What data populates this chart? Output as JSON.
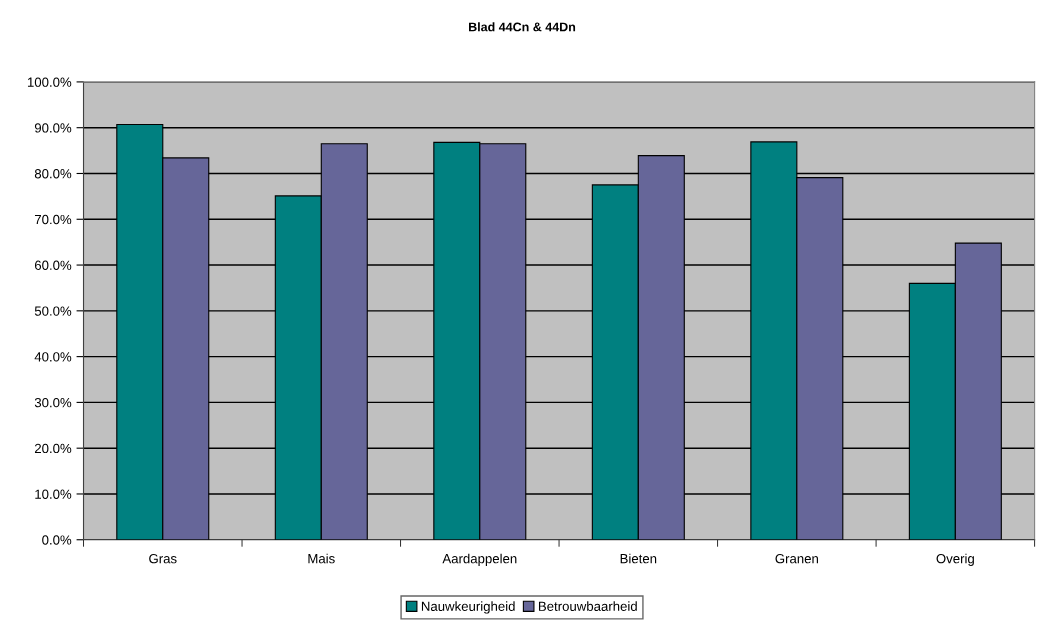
{
  "chart_data": {
    "type": "bar",
    "title": "Blad 44Cn & 44Dn",
    "categories": [
      "Gras",
      "Mais",
      "Aardappelen",
      "Bieten",
      "Granen",
      "Overig"
    ],
    "series": [
      {
        "name": "Nauwkeurigheid",
        "color": "#008080",
        "values": [
          90.7,
          75.1,
          86.8,
          77.5,
          86.9,
          56.0
        ]
      },
      {
        "name": "Betrouwbaarheid",
        "color": "#666699",
        "values": [
          83.4,
          86.5,
          86.5,
          83.9,
          79.1,
          64.8
        ]
      }
    ],
    "ylim": [
      0,
      100
    ],
    "yticks": [
      {
        "value": 0,
        "label": "0.0%"
      },
      {
        "value": 10,
        "label": "10.0%"
      },
      {
        "value": 20,
        "label": "20.0%"
      },
      {
        "value": 30,
        "label": "30.0%"
      },
      {
        "value": 40,
        "label": "40.0%"
      },
      {
        "value": 50,
        "label": "50.0%"
      },
      {
        "value": 60,
        "label": "60.0%"
      },
      {
        "value": 70,
        "label": "70.0%"
      },
      {
        "value": 80,
        "label": "80.0%"
      },
      {
        "value": 90,
        "label": "90.0%"
      },
      {
        "value": 100,
        "label": "100.0%"
      }
    ],
    "grid": "y",
    "legend": "bottom"
  }
}
